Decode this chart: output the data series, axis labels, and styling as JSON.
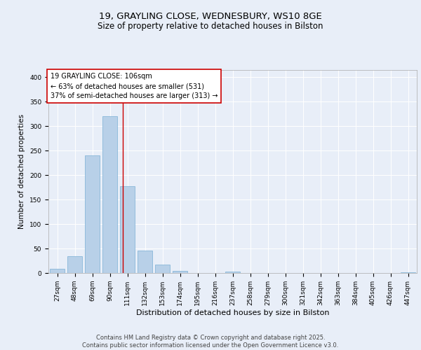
{
  "title_line1": "19, GRAYLING CLOSE, WEDNESBURY, WS10 8GE",
  "title_line2": "Size of property relative to detached houses in Bilston",
  "xlabel": "Distribution of detached houses by size in Bilston",
  "ylabel": "Number of detached properties",
  "categories": [
    "27sqm",
    "48sqm",
    "69sqm",
    "90sqm",
    "111sqm",
    "132sqm",
    "153sqm",
    "174sqm",
    "195sqm",
    "216sqm",
    "237sqm",
    "258sqm",
    "279sqm",
    "300sqm",
    "321sqm",
    "342sqm",
    "363sqm",
    "384sqm",
    "405sqm",
    "426sqm",
    "447sqm"
  ],
  "values": [
    8,
    34,
    240,
    320,
    178,
    46,
    17,
    5,
    0,
    0,
    3,
    0,
    0,
    0,
    0,
    0,
    0,
    0,
    0,
    0,
    1
  ],
  "bar_color": "#b8d0e8",
  "bar_edge_color": "#7aafd4",
  "background_color": "#e8eef8",
  "grid_color": "#ffffff",
  "annotation_text": "19 GRAYLING CLOSE: 106sqm\n← 63% of detached houses are smaller (531)\n37% of semi-detached houses are larger (313) →",
  "annotation_box_facecolor": "#ffffff",
  "annotation_box_edgecolor": "#cc0000",
  "vline_x_index": 3.72,
  "vline_color": "#cc0000",
  "ylim": [
    0,
    415
  ],
  "yticks": [
    0,
    50,
    100,
    150,
    200,
    250,
    300,
    350,
    400
  ],
  "footer_text": "Contains HM Land Registry data © Crown copyright and database right 2025.\nContains public sector information licensed under the Open Government Licence v3.0.",
  "title_fontsize": 9.5,
  "subtitle_fontsize": 8.5,
  "axis_label_fontsize": 8,
  "tick_fontsize": 6.5,
  "annotation_fontsize": 7,
  "footer_fontsize": 6,
  "ylabel_fontsize": 7.5
}
